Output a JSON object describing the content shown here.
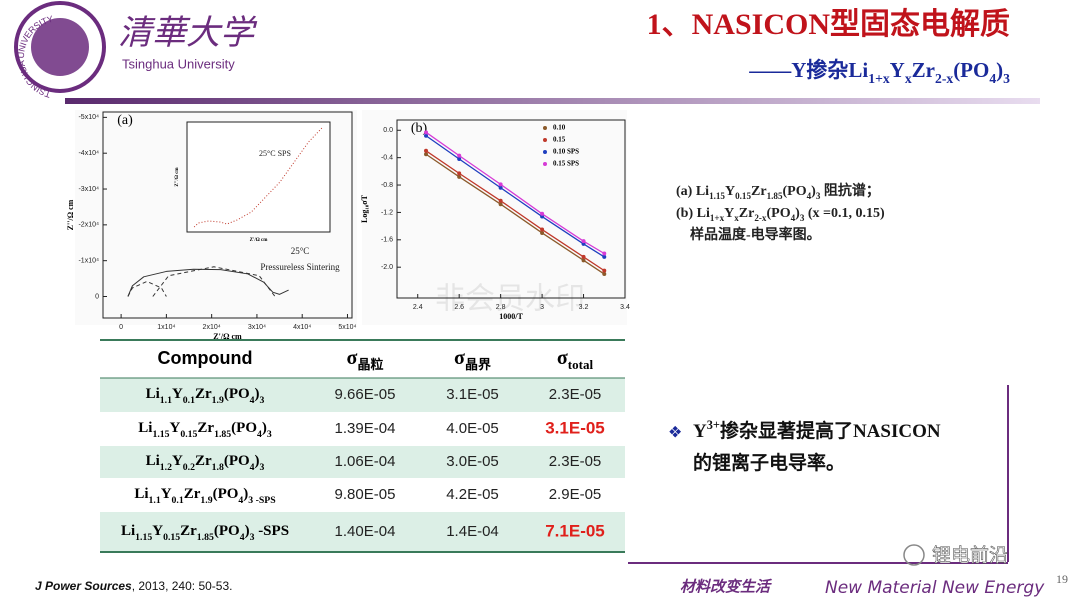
{
  "header": {
    "logo": {
      "ring_text": "TSINGHUA UNIVERSITY",
      "year": "1911",
      "name_cn": "清華大学",
      "name_en": "Tsinghua University"
    },
    "title": "1、NASICON型固态电解质",
    "subtitle": [
      "——Y掺杂Li",
      "1+x",
      "Y",
      "x",
      "Zr",
      "2-x",
      "(PO",
      "4",
      ")",
      "3"
    ]
  },
  "chart_data": [
    {
      "type": "line",
      "panel_label": "(a)",
      "x_label": "Z'/Ω cm",
      "y_label": "Z''/Ω cm",
      "xlim": [
        -4000,
        51000
      ],
      "ylim": [
        6000,
        -51500
      ],
      "xticks": [
        0,
        {
          "value": 10000,
          "label": "1x10⁴"
        },
        {
          "value": 20000,
          "label": "2x10⁴"
        },
        {
          "value": 30000,
          "label": "3x10⁴"
        },
        {
          "value": 40000,
          "label": "4x10⁴"
        },
        {
          "value": 50000,
          "label": "5x10⁴"
        }
      ],
      "yticks": [
        0,
        {
          "value": -10000,
          "label": "-1x10⁴"
        },
        {
          "value": -20000,
          "label": "-2x10⁴"
        },
        {
          "value": -30000,
          "label": "-3x10⁴"
        },
        {
          "value": -40000,
          "label": "-4x10⁴"
        },
        {
          "value": -50000,
          "label": "-5x10⁴"
        }
      ],
      "annotations": [
        "25°C",
        "Pressureless Sintering"
      ],
      "series": [
        {
          "color": "#333333",
          "style": "solid",
          "x": [
            1500,
            2500,
            5000,
            10000,
            16000,
            22000,
            28000,
            31500,
            33500,
            35000,
            37000
          ],
          "values": [
            0,
            -3000,
            -5500,
            -7000,
            -7600,
            -7500,
            -6300,
            -4000,
            -1200,
            -600,
            -1800
          ]
        },
        {
          "color": "#333333",
          "style": "dashed",
          "x": [
            1500,
            2500,
            5700,
            8900,
            10000
          ],
          "values": [
            0,
            -2400,
            -4200,
            -2400,
            0
          ]
        },
        {
          "color": "#333333",
          "style": "dashed",
          "x": [
            7000,
            10500,
            20500,
            30500,
            34000
          ],
          "values": [
            0,
            -5800,
            -8300,
            -5800,
            0
          ]
        }
      ]
    },
    {
      "type": "line",
      "inset": true,
      "x_label": "Z'/Ω cm",
      "y_label": "Z''/Ω cm",
      "xlim": [
        0,
        10
      ],
      "ylim": [
        0.5,
        -10.5
      ],
      "annotations": [
        "25°C SPS"
      ],
      "series": [
        {
          "color": "#c0392b",
          "style": "dotted",
          "x": [
            0.5,
            0.8,
            1.5,
            2.3,
            2.8,
            3.5,
            4.5,
            5.5,
            6.5,
            7.5,
            8.5,
            9.5
          ],
          "values": [
            0,
            -0.4,
            -0.6,
            -0.5,
            -0.3,
            -0.7,
            -1.5,
            -3,
            -4.5,
            -6.5,
            -8.5,
            -10
          ]
        }
      ]
    },
    {
      "type": "line",
      "panel_label": "(b)",
      "x_label": "1000/T",
      "y_label": "Log₁₀σT",
      "xlim": [
        2.3,
        3.4
      ],
      "ylim": [
        -2.45,
        0.15
      ],
      "xticks": [
        2.4,
        2.6,
        2.8,
        3.0,
        3.2,
        3.4
      ],
      "yticks": [
        {
          "value": -2.0,
          "label": "-2.0"
        },
        -1.6,
        -1.2,
        -0.8,
        -0.4,
        {
          "value": 0,
          "label": "0.0"
        }
      ],
      "legend": "upper right",
      "x": [
        2.44,
        2.6,
        2.8,
        3.0,
        3.2,
        3.3
      ],
      "series": [
        {
          "name": "0.10",
          "color": "#8b5a2b",
          "values": [
            -0.35,
            -0.68,
            -1.08,
            -1.5,
            -1.9,
            -2.1
          ]
        },
        {
          "name": "0.15",
          "color": "#c0392b",
          "values": [
            -0.3,
            -0.63,
            -1.03,
            -1.45,
            -1.85,
            -2.05
          ]
        },
        {
          "name": "0.10 SPS",
          "color": "#1f3fbf",
          "values": [
            -0.08,
            -0.42,
            -0.84,
            -1.26,
            -1.66,
            -1.85
          ]
        },
        {
          "name": "0.15 SPS",
          "color": "#d63bd6",
          "values": [
            -0.03,
            -0.37,
            -0.79,
            -1.22,
            -1.62,
            -1.8
          ]
        }
      ]
    }
  ],
  "table": {
    "columns": [
      [
        "Compound"
      ],
      [
        "σ",
        "晶粒"
      ],
      [
        "σ",
        "晶界"
      ],
      [
        "σ",
        "total"
      ]
    ],
    "highlight_rows": [
      0,
      2,
      4
    ],
    "emphasis_cells": [
      [
        1,
        2
      ],
      [
        4,
        2
      ]
    ],
    "emphasis_color": "#e0201b",
    "rows": [
      {
        "compound": [
          "Li",
          "1.1",
          "Y",
          "0.1",
          "Zr",
          "1.9",
          "(PO",
          "4",
          ")",
          "3"
        ],
        "values": [
          "9.66E-05",
          "3.1E-05",
          "2.3E-05"
        ]
      },
      {
        "compound": [
          "Li",
          "1.15",
          "Y",
          "0.15",
          "Zr",
          "1.85",
          "(PO",
          "4",
          ")",
          "3"
        ],
        "values": [
          "1.39E-04",
          "4.0E-05",
          "3.1E-05"
        ]
      },
      {
        "compound": [
          "Li",
          "1.2",
          "Y",
          "0.2",
          "Zr",
          "1.8",
          "(PO",
          "4",
          ")",
          "3"
        ],
        "values": [
          "1.06E-04",
          "3.0E-05",
          "2.3E-05"
        ]
      },
      {
        "compound": [
          "Li",
          "1.1",
          "Y",
          "0.1",
          "Zr",
          "1.9",
          "(PO",
          "4",
          ")",
          "3 -SPS"
        ],
        "values": [
          "9.80E-05",
          "4.2E-05",
          "2.9E-05"
        ]
      },
      {
        "compound": [
          "Li",
          "1.15",
          "Y",
          "0.15",
          "Zr",
          "1.85",
          "(PO",
          "4",
          ")",
          "3",
          " -SPS"
        ],
        "values": [
          "1.40E-04",
          "1.4E-04",
          "7.1E-05"
        ]
      }
    ]
  },
  "caption": [
    [
      "(a) Li",
      "1.15",
      "Y",
      "0.15",
      "Zr",
      "1.85",
      "(PO",
      "4",
      ")",
      "3",
      " 阻抗谱；"
    ],
    [
      "(b) Li",
      "1+x",
      "Y",
      "x",
      "Zr",
      "2-x",
      "(PO",
      "4",
      ")",
      "3",
      " (x =0.1, 0.15)"
    ],
    [
      "样品温度-电导率图。"
    ]
  ],
  "bullet": {
    "marker": "❖",
    "lines": [
      [
        "Y",
        "3+",
        "掺杂显著提高了NASICON"
      ],
      [
        "的锂离子电导率。"
      ]
    ]
  },
  "footer": {
    "journal": "J Power Sources",
    "rest": ", 2013, 240: 50-53.",
    "slogan_cn": "材料改变生活",
    "slogan_en": "New Material New Energy",
    "page": "19",
    "watermark": "锂电前沿",
    "center_watermark": "非会员水印"
  }
}
